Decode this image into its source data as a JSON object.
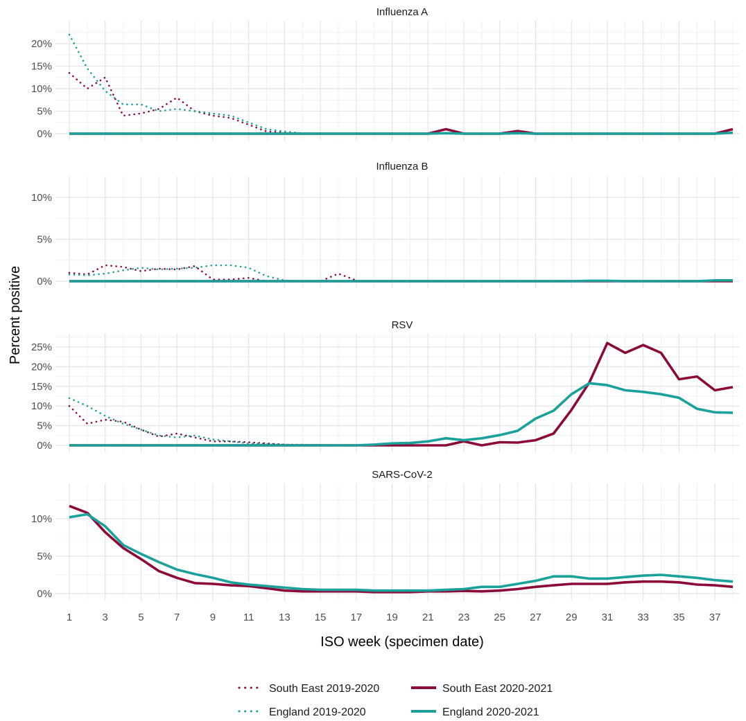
{
  "chart_data": {
    "type": "line",
    "xlabel": "ISO week (specimen date)",
    "ylabel": "Percent positive",
    "x_ticks": [
      1,
      3,
      5,
      7,
      9,
      11,
      13,
      15,
      17,
      19,
      21,
      23,
      25,
      27,
      29,
      31,
      33,
      35,
      37
    ],
    "x_range": [
      1,
      38
    ],
    "grid": true,
    "legend_position": "bottom",
    "legend": [
      {
        "name": "South East 2019-2020",
        "color": "#8b0a3a",
        "style": "dotted"
      },
      {
        "name": "South East 2020-2021",
        "color": "#8b0a3a",
        "style": "solid"
      },
      {
        "name": "England 2019-2020",
        "color": "#1aa19a",
        "style": "dotted"
      },
      {
        "name": "England 2020-2021",
        "color": "#1aa19a",
        "style": "solid"
      }
    ],
    "panels": [
      {
        "title": "Influenza A",
        "ylim": [
          0,
          22
        ],
        "y_ticks": [
          0,
          5,
          10,
          15,
          20
        ],
        "y_tick_labels": [
          "0%",
          "5%",
          "10%",
          "15%",
          "20%"
        ],
        "series": [
          {
            "name": "South East 2019-2020",
            "x": [
              1,
              2,
              3,
              4,
              5,
              6,
              7,
              8,
              9,
              10,
              11,
              12,
              13,
              14,
              15,
              16,
              17,
              18
            ],
            "values": [
              13.5,
              10,
              12.5,
              4,
              4.5,
              5.5,
              8,
              5,
              4,
              3.5,
              2,
              0.5,
              0.3,
              0,
              0,
              0,
              0,
              0
            ]
          },
          {
            "name": "England 2019-2020",
            "x": [
              1,
              2,
              3,
              4,
              5,
              6,
              7,
              8,
              9,
              10,
              11,
              12,
              13,
              14,
              15,
              16,
              17,
              18
            ],
            "values": [
              22,
              14.5,
              9.5,
              6.5,
              6.5,
              5,
              5.5,
              5,
              4.5,
              4,
              2.5,
              1,
              0.5,
              0.1,
              0,
              0,
              0,
              0
            ]
          },
          {
            "name": "South East 2020-2021",
            "x": [
              1,
              2,
              3,
              4,
              5,
              6,
              7,
              8,
              9,
              10,
              11,
              12,
              13,
              14,
              15,
              16,
              17,
              18,
              19,
              20,
              21,
              22,
              23,
              24,
              25,
              26,
              27,
              28,
              29,
              30,
              31,
              32,
              33,
              34,
              35,
              36,
              37,
              38
            ],
            "values": [
              0,
              0,
              0,
              0,
              0,
              0,
              0,
              0,
              0,
              0,
              0,
              0,
              0,
              0,
              0,
              0,
              0,
              0,
              0,
              0,
              0,
              1,
              0,
              0,
              0,
              0.6,
              0,
              0,
              0,
              0,
              0,
              0,
              0,
              0,
              0,
              0,
              0,
              1
            ]
          },
          {
            "name": "England 2020-2021",
            "x": [
              1,
              2,
              3,
              4,
              5,
              6,
              7,
              8,
              9,
              10,
              11,
              12,
              13,
              14,
              15,
              16,
              17,
              18,
              19,
              20,
              21,
              22,
              23,
              24,
              25,
              26,
              27,
              28,
              29,
              30,
              31,
              32,
              33,
              34,
              35,
              36,
              37,
              38
            ],
            "values": [
              0,
              0,
              0,
              0,
              0,
              0,
              0,
              0,
              0,
              0,
              0,
              0,
              0,
              0,
              0,
              0,
              0,
              0,
              0,
              0,
              0,
              0.1,
              0,
              0,
              0,
              0.1,
              0,
              0,
              0,
              0,
              0,
              0,
              0,
              0,
              0,
              0,
              0,
              0.2
            ]
          }
        ]
      },
      {
        "title": "Influenza B",
        "ylim": [
          0,
          12
        ],
        "y_ticks": [
          0,
          5,
          10
        ],
        "y_tick_labels": [
          "0%",
          "5%",
          "10%"
        ],
        "series": [
          {
            "name": "South East 2019-2020",
            "x": [
              1,
              2,
              3,
              4,
              5,
              6,
              7,
              8,
              9,
              10,
              11,
              12,
              13,
              14,
              15,
              16,
              17
            ],
            "values": [
              1,
              0.8,
              1.9,
              1.7,
              1.2,
              1.5,
              1.4,
              1.8,
              0.2,
              0.2,
              0.4,
              0,
              0,
              0,
              0,
              0.9,
              0.1
            ]
          },
          {
            "name": "England 2019-2020",
            "x": [
              1,
              2,
              3,
              4,
              5,
              6,
              7,
              8,
              9,
              10,
              11,
              12,
              13,
              14,
              15,
              16,
              17
            ],
            "values": [
              0.8,
              0.7,
              0.9,
              1.3,
              1.6,
              1.4,
              1.5,
              1.6,
              1.9,
              1.9,
              1.6,
              0.6,
              0.1,
              0,
              0,
              0,
              0
            ]
          },
          {
            "name": "South East 2020-2021",
            "x": [
              1,
              2,
              3,
              4,
              5,
              6,
              7,
              8,
              9,
              10,
              11,
              12,
              13,
              14,
              15,
              16,
              17,
              18,
              19,
              20,
              21,
              22,
              23,
              24,
              25,
              26,
              27,
              28,
              29,
              30,
              31,
              32,
              33,
              34,
              35,
              36,
              37,
              38
            ],
            "values": [
              0,
              0,
              0,
              0,
              0,
              0,
              0,
              0,
              0,
              0,
              0,
              0,
              0,
              0,
              0,
              0,
              0,
              0,
              0,
              0,
              0,
              0,
              0,
              0,
              0,
              0,
              0,
              0,
              0,
              0,
              0,
              0,
              0,
              0,
              0,
              0,
              0,
              0
            ]
          },
          {
            "name": "England 2020-2021",
            "x": [
              1,
              2,
              3,
              4,
              5,
              6,
              7,
              8,
              9,
              10,
              11,
              12,
              13,
              14,
              15,
              16,
              17,
              18,
              19,
              20,
              21,
              22,
              23,
              24,
              25,
              26,
              27,
              28,
              29,
              30,
              31,
              32,
              33,
              34,
              35,
              36,
              37,
              38
            ],
            "values": [
              0,
              0,
              0,
              0,
              0,
              0,
              0,
              0,
              0,
              0,
              0,
              0,
              0,
              0,
              0,
              0,
              0,
              0,
              0,
              0,
              0,
              0,
              0,
              0,
              0,
              0,
              0,
              0,
              0,
              0.05,
              0.05,
              0,
              0,
              0,
              0,
              0,
              0.1,
              0.1
            ]
          }
        ]
      },
      {
        "title": "RSV",
        "ylim": [
          0,
          27
        ],
        "y_ticks": [
          0,
          5,
          10,
          15,
          20,
          25
        ],
        "y_tick_labels": [
          "0%",
          "5%",
          "10%",
          "15%",
          "20%",
          "25%"
        ],
        "series": [
          {
            "name": "South East 2019-2020",
            "x": [
              1,
              2,
              3,
              4,
              5,
              6,
              7,
              8,
              9,
              10,
              11,
              12,
              13,
              14,
              15,
              16,
              17,
              18
            ],
            "values": [
              10,
              5.5,
              6.5,
              6,
              4,
              2.2,
              3,
              2,
              1,
              1,
              0.8,
              0.5,
              0.2,
              0,
              0,
              0,
              0,
              0
            ]
          },
          {
            "name": "England 2019-2020",
            "x": [
              1,
              2,
              3,
              4,
              5,
              6,
              7,
              8,
              9,
              10,
              11,
              12,
              13,
              14,
              15,
              16,
              17,
              18
            ],
            "values": [
              12,
              10,
              7.5,
              5.5,
              4,
              2.5,
              2,
              2.5,
              1.5,
              1,
              0.5,
              0.4,
              0.2,
              0.2,
              0.1,
              0,
              0,
              0
            ]
          },
          {
            "name": "South East 2020-2021",
            "x": [
              1,
              2,
              3,
              4,
              5,
              6,
              7,
              8,
              9,
              10,
              11,
              12,
              13,
              14,
              15,
              16,
              17,
              18,
              19,
              20,
              21,
              22,
              23,
              24,
              25,
              26,
              27,
              28,
              29,
              30,
              31,
              32,
              33,
              34,
              35,
              36,
              37,
              38
            ],
            "values": [
              0,
              0,
              0,
              0,
              0,
              0,
              0,
              0,
              0,
              0,
              0,
              0,
              0,
              0,
              0,
              0,
              0,
              0,
              0,
              0,
              0,
              0,
              1,
              0,
              0.8,
              0.7,
              1.3,
              3,
              9,
              16,
              26,
              23.5,
              25.5,
              23.5,
              16.8,
              17.5,
              14,
              14.8
            ]
          },
          {
            "name": "England 2020-2021",
            "x": [
              1,
              2,
              3,
              4,
              5,
              6,
              7,
              8,
              9,
              10,
              11,
              12,
              13,
              14,
              15,
              16,
              17,
              18,
              19,
              20,
              21,
              22,
              23,
              24,
              25,
              26,
              27,
              28,
              29,
              30,
              31,
              32,
              33,
              34,
              35,
              36,
              37,
              38
            ],
            "values": [
              0,
              0,
              0,
              0,
              0,
              0,
              0,
              0,
              0,
              0,
              0,
              0,
              0,
              0,
              0,
              0,
              0,
              0.2,
              0.5,
              0.6,
              1,
              1.8,
              1.3,
              1.8,
              2.6,
              3.7,
              6.8,
              8.8,
              13,
              15.8,
              15.3,
              14,
              13.6,
              13,
              12.1,
              9.3,
              8.4,
              8.3
            ]
          }
        ]
      },
      {
        "title": "SARS-CoV-2",
        "ylim": [
          0,
          12
        ],
        "y_ticks": [
          0,
          5,
          10
        ],
        "y_tick_labels": [
          "0%",
          "5%",
          "10%"
        ],
        "series": [
          {
            "name": "South East 2020-2021",
            "x": [
              1,
              2,
              3,
              4,
              5,
              6,
              7,
              8,
              9,
              10,
              11,
              12,
              13,
              14,
              15,
              16,
              17,
              18,
              19,
              20,
              21,
              22,
              23,
              24,
              25,
              26,
              27,
              28,
              29,
              30,
              31,
              32,
              33,
              34,
              35,
              36,
              37,
              38
            ],
            "values": [
              11.7,
              10.8,
              8.2,
              6.1,
              4.6,
              3,
              2.1,
              1.4,
              1.3,
              1.1,
              1,
              0.7,
              0.4,
              0.3,
              0.3,
              0.3,
              0.3,
              0.2,
              0.2,
              0.2,
              0.3,
              0.3,
              0.35,
              0.3,
              0.4,
              0.6,
              0.9,
              1.1,
              1.3,
              1.3,
              1.3,
              1.5,
              1.6,
              1.6,
              1.5,
              1.2,
              1.1,
              0.9
            ]
          },
          {
            "name": "England 2020-2021",
            "x": [
              1,
              2,
              3,
              4,
              5,
              6,
              7,
              8,
              9,
              10,
              11,
              12,
              13,
              14,
              15,
              16,
              17,
              18,
              19,
              20,
              21,
              22,
              23,
              24,
              25,
              26,
              27,
              28,
              29,
              30,
              31,
              32,
              33,
              34,
              35,
              36,
              37,
              38
            ],
            "values": [
              10.2,
              10.6,
              9,
              6.5,
              5.3,
              4.2,
              3.2,
              2.6,
              2.1,
              1.5,
              1.2,
              1,
              0.8,
              0.6,
              0.5,
              0.5,
              0.5,
              0.4,
              0.4,
              0.4,
              0.4,
              0.5,
              0.6,
              0.9,
              0.9,
              1.3,
              1.7,
              2.3,
              2.3,
              2,
              2,
              2.2,
              2.4,
              2.5,
              2.3,
              2.1,
              1.8,
              1.6
            ]
          }
        ]
      }
    ]
  }
}
